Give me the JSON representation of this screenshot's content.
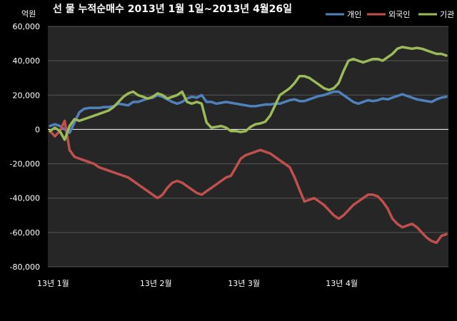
{
  "chart_data": {
    "type": "line",
    "title": "선 물 누적순매수 2013년 1월 1일~2013년 4월26일",
    "unit_label": "억원",
    "ylim": [
      -80000,
      60000
    ],
    "y_ticks": [
      "60,000",
      "40,000",
      "20,000",
      "0",
      "-20,000",
      "-40,000",
      "-60,000",
      "-80,000"
    ],
    "y_tick_values": [
      60000,
      40000,
      20000,
      0,
      -20000,
      -40000,
      -60000,
      -80000
    ],
    "grid": "horizontal",
    "legend_position": "top-right",
    "x_tick_labels": [
      {
        "label": "13년 1월",
        "index": 0
      },
      {
        "label": "13년 2월",
        "index": 21
      },
      {
        "label": "13년 3월",
        "index": 39
      },
      {
        "label": "13년 4월",
        "index": 59
      }
    ],
    "x_count": 82,
    "series": [
      {
        "name": "개인",
        "color": "#4f81bd",
        "values": [
          2000,
          3000,
          2000,
          0,
          -2000,
          4000,
          10000,
          12000,
          12500,
          12500,
          12500,
          13000,
          13000,
          13500,
          15000,
          14500,
          14000,
          16000,
          16000,
          17000,
          18000,
          18500,
          20000,
          19000,
          17500,
          16000,
          15000,
          16000,
          18000,
          19000,
          18500,
          20000,
          16000,
          16000,
          15000,
          15500,
          16000,
          15500,
          15000,
          14500,
          14000,
          13500,
          13500,
          14000,
          14500,
          14500,
          15000,
          15000,
          16000,
          17000,
          17500,
          16500,
          16500,
          17500,
          18500,
          19500,
          20000,
          21000,
          22000,
          22000,
          20000,
          18000,
          16000,
          15000,
          16000,
          17000,
          16500,
          17000,
          18000,
          17500,
          18500,
          19500,
          20500,
          19500,
          18500,
          17500,
          17000,
          16500,
          16000,
          17500,
          18500,
          19000
        ]
      },
      {
        "name": "외국인",
        "color": "#c0504d",
        "values": [
          -1000,
          -4000,
          -1000,
          5000,
          -12000,
          -16000,
          -17000,
          -18000,
          -19000,
          -20000,
          -22000,
          -23000,
          -24000,
          -25000,
          -26000,
          -27000,
          -28000,
          -30000,
          -32000,
          -34000,
          -36000,
          -38000,
          -40000,
          -38000,
          -34000,
          -31000,
          -30000,
          -31000,
          -33000,
          -35000,
          -37000,
          -38000,
          -36000,
          -34000,
          -32000,
          -30000,
          -28000,
          -27000,
          -22000,
          -17000,
          -15000,
          -14000,
          -13000,
          -12000,
          -13000,
          -14000,
          -16000,
          -18000,
          -20000,
          -22000,
          -28000,
          -35000,
          -42000,
          -41000,
          -40000,
          -42000,
          -44000,
          -47000,
          -50000,
          -52000,
          -50000,
          -47000,
          -44000,
          -42000,
          -40000,
          -38000,
          -38000,
          -39000,
          -42000,
          -46000,
          -52000,
          -55000,
          -57000,
          -56000,
          -55000,
          -57000,
          -60000,
          -63000,
          -65000,
          -66000,
          -62000,
          -61000
        ]
      },
      {
        "name": "기관",
        "color": "#9bbb59",
        "values": [
          -1000,
          1000,
          -1000,
          -6000,
          2000,
          6000,
          5000,
          6000,
          7000,
          8000,
          9000,
          10000,
          11000,
          13000,
          16000,
          19000,
          21000,
          22000,
          20000,
          19000,
          18000,
          19000,
          21000,
          20000,
          18000,
          19000,
          20000,
          22000,
          16000,
          15000,
          16000,
          15000,
          4000,
          1000,
          1500,
          2000,
          1000,
          -1000,
          -1000,
          -1500,
          -1000,
          1500,
          3000,
          3500,
          4500,
          8000,
          14000,
          20000,
          22000,
          24000,
          27000,
          31000,
          31000,
          30000,
          28000,
          26000,
          24000,
          23000,
          24000,
          27000,
          34000,
          40000,
          41000,
          40000,
          39000,
          40000,
          41000,
          41000,
          40000,
          42000,
          44000,
          47000,
          48000,
          47500,
          47000,
          47500,
          47000,
          46000,
          45000,
          44000,
          44000,
          43000
        ]
      }
    ]
  }
}
